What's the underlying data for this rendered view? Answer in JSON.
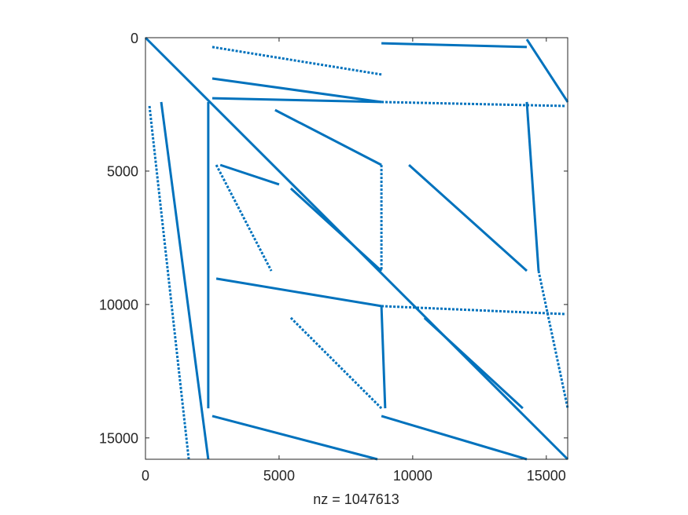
{
  "chart_data": {
    "type": "spy",
    "xlabel": "nz = 1047613",
    "color": "#0072bd",
    "xlim": [
      0,
      15800
    ],
    "ylim": [
      0,
      15800
    ],
    "xticks": [
      0,
      5000,
      10000,
      15000
    ],
    "yticks": [
      0,
      5000,
      10000,
      15000
    ],
    "y_reversed": true,
    "segments": [
      [
        0,
        0,
        15800,
        15800
      ],
      [
        2500,
        2270,
        8830,
        2410
      ],
      [
        8830,
        2410,
        15740,
        2560
      ],
      [
        2350,
        2410,
        2350,
        13890
      ],
      [
        4850,
        2710,
        8830,
        4770
      ],
      [
        2650,
        4770,
        4710,
        8740
      ],
      [
        5440,
        5650,
        8830,
        8740
      ],
      [
        9860,
        4770,
        14270,
        8740
      ],
      [
        5440,
        10500,
        8830,
        13890
      ],
      [
        10440,
        10500,
        14120,
        13890
      ],
      [
        2650,
        9030,
        8830,
        10060
      ],
      [
        8830,
        10060,
        15740,
        10360
      ],
      [
        2500,
        14180,
        8680,
        15800
      ],
      [
        8830,
        14180,
        14270,
        15800
      ],
      [
        2500,
        350,
        8830,
        1380
      ],
      [
        8830,
        210,
        14270,
        350
      ],
      [
        2500,
        1530,
        8830,
        2410
      ],
      [
        150,
        2560,
        1620,
        15800
      ],
      [
        590,
        2410,
        2350,
        15800
      ],
      [
        14270,
        60,
        15800,
        2410
      ],
      [
        8830,
        4770,
        8830,
        8740
      ],
      [
        8830,
        10060,
        8970,
        13890
      ],
      [
        14270,
        2410,
        14710,
        8740
      ],
      [
        14710,
        8740,
        15800,
        13890
      ],
      [
        2800,
        4770,
        5000,
        5500
      ]
    ]
  }
}
